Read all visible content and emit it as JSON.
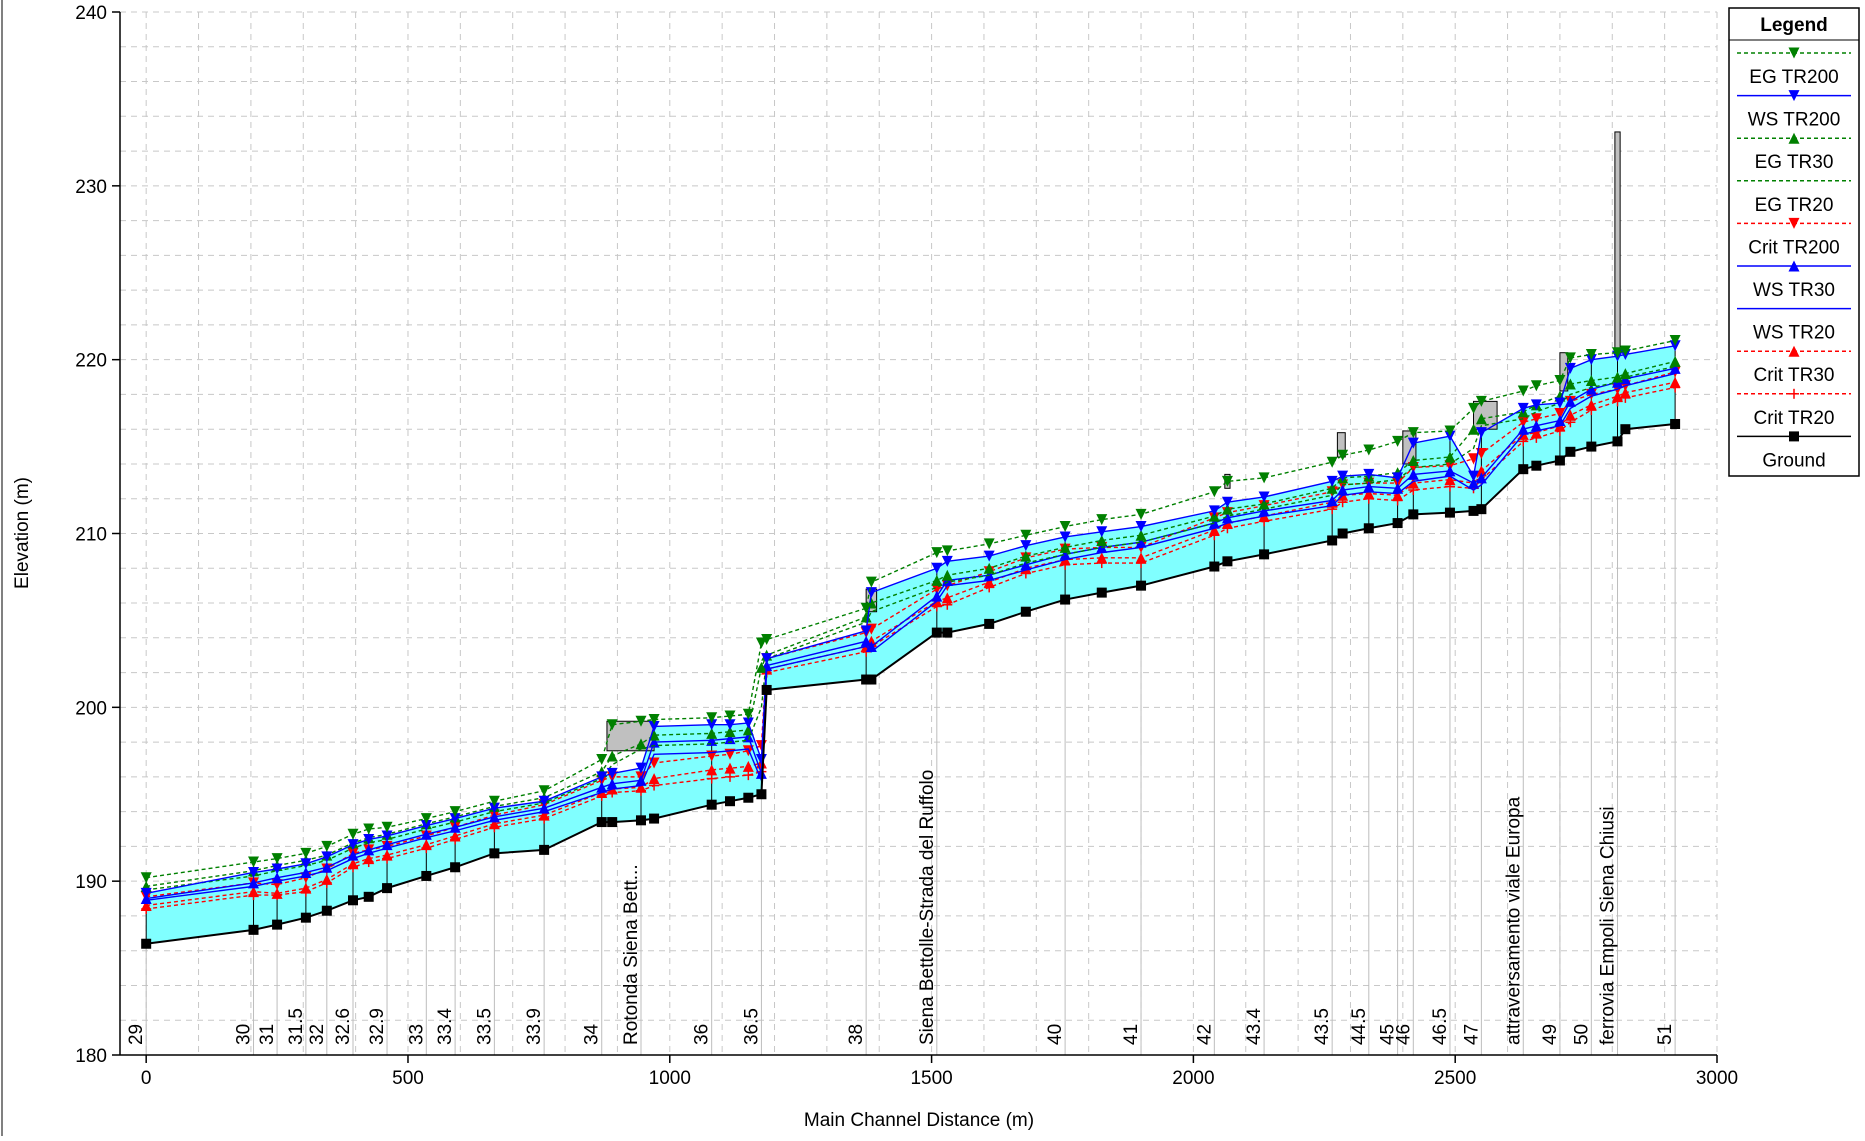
{
  "chart_data": {
    "type": "line",
    "xlabel": "Main Channel Distance (m)",
    "ylabel": "Elevation (m)",
    "xlim": [
      -50,
      3000
    ],
    "ylim": [
      180,
      240
    ],
    "xticks": [
      0,
      500,
      1000,
      1500,
      2000,
      2500,
      3000
    ],
    "yticks": [
      180,
      190,
      200,
      210,
      220,
      230,
      240
    ],
    "grid": true,
    "legend": {
      "title": "Legend",
      "placement": "right",
      "entries": [
        {
          "label": "EG  TR200",
          "color": "#008000",
          "dash": true,
          "marker": "tri-down"
        },
        {
          "label": "WS  TR200",
          "color": "#0000ff",
          "dash": false,
          "marker": "tri-down"
        },
        {
          "label": "EG  TR30",
          "color": "#008000",
          "dash": true,
          "marker": "tri-up"
        },
        {
          "label": "EG  TR20",
          "color": "#008000",
          "dash": true,
          "marker": "none"
        },
        {
          "label": "Crit  TR200",
          "color": "#ff0000",
          "dash": true,
          "marker": "tri-down"
        },
        {
          "label": "WS  TR30",
          "color": "#0000ff",
          "dash": false,
          "marker": "tri-up"
        },
        {
          "label": "WS  TR20",
          "color": "#0000ff",
          "dash": false,
          "marker": "none"
        },
        {
          "label": "Crit  TR30",
          "color": "#ff0000",
          "dash": true,
          "marker": "tri-up"
        },
        {
          "label": "Crit  TR20",
          "color": "#ff0000",
          "dash": true,
          "marker": "plus"
        },
        {
          "label": "Ground",
          "color": "#000000",
          "dash": false,
          "marker": "square"
        }
      ]
    },
    "colors": {
      "water": "#80ffff",
      "ground": "#000000",
      "eg": "#008000",
      "ws": "#0000ff",
      "crit": "#ff0000",
      "structure": "#c0c0c0"
    },
    "x": [
      0,
      205,
      250,
      305,
      345,
      395,
      425,
      460,
      535,
      590,
      665,
      760,
      870,
      890,
      945,
      970,
      1080,
      1115,
      1150,
      1175,
      1185,
      1375,
      1385,
      1510,
      1530,
      1610,
      1680,
      1755,
      1825,
      1900,
      2040,
      2065,
      2135,
      2265,
      2285,
      2335,
      2390,
      2420,
      2490,
      2535,
      2550,
      2630,
      2655,
      2700,
      2720,
      2760,
      2810,
      2825,
      2920
    ],
    "series": [
      {
        "name": "Ground",
        "values": [
          186.4,
          187.2,
          187.5,
          187.9,
          188.3,
          188.9,
          189.1,
          189.6,
          190.3,
          190.8,
          191.6,
          191.8,
          193.4,
          193.4,
          193.5,
          193.6,
          194.4,
          194.6,
          194.8,
          195.0,
          201.0,
          201.6,
          201.6,
          204.3,
          204.3,
          204.8,
          205.5,
          206.2,
          206.6,
          207.0,
          208.1,
          208.4,
          208.8,
          209.6,
          210.0,
          210.3,
          210.6,
          211.1,
          211.2,
          211.3,
          211.4,
          213.7,
          213.9,
          214.2,
          214.7,
          215.0,
          215.3,
          216.0,
          216.3
        ]
      },
      {
        "name": "WS  TR20",
        "values": [
          188.9,
          189.7,
          190.0,
          190.3,
          190.6,
          191.3,
          191.6,
          191.9,
          192.5,
          192.9,
          193.5,
          194.0,
          195.1,
          195.3,
          195.5,
          197.3,
          197.4,
          197.5,
          197.6,
          195.8,
          202.2,
          203.5,
          203.2,
          206.1,
          207.0,
          207.3,
          207.9,
          208.5,
          208.9,
          209.2,
          210.3,
          210.6,
          211.0,
          211.6,
          212.2,
          212.4,
          212.3,
          213.0,
          213.3,
          212.5,
          212.8,
          215.7,
          215.9,
          216.2,
          217.2,
          217.9,
          218.3,
          218.5,
          219.2
        ]
      },
      {
        "name": "WS  TR30",
        "values": [
          189.0,
          189.9,
          190.2,
          190.5,
          190.8,
          191.5,
          191.8,
          192.1,
          192.7,
          193.1,
          193.7,
          194.2,
          195.4,
          195.6,
          195.8,
          198.0,
          198.1,
          198.2,
          198.3,
          196.2,
          202.4,
          203.8,
          203.5,
          206.4,
          207.3,
          207.6,
          208.2,
          208.8,
          209.2,
          209.5,
          210.6,
          210.9,
          211.3,
          211.9,
          212.5,
          212.7,
          212.6,
          213.4,
          213.6,
          212.9,
          213.2,
          216.0,
          216.2,
          216.5,
          217.6,
          218.3,
          218.7,
          218.9,
          219.5
        ]
      },
      {
        "name": "WS  TR200",
        "values": [
          189.3,
          190.5,
          190.7,
          191.0,
          191.4,
          192.1,
          192.4,
          192.6,
          193.2,
          193.6,
          194.2,
          194.6,
          196.0,
          196.2,
          196.5,
          198.9,
          199.0,
          199.0,
          199.1,
          197.0,
          202.8,
          204.4,
          206.6,
          208.0,
          208.4,
          208.7,
          209.3,
          209.8,
          210.1,
          210.4,
          211.3,
          211.8,
          212.1,
          213.0,
          213.3,
          213.4,
          213.2,
          215.2,
          215.6,
          213.3,
          215.8,
          217.2,
          217.4,
          217.5,
          219.5,
          220.0,
          220.2,
          220.3,
          220.8
        ]
      },
      {
        "name": "EG  TR20",
        "values": [
          189.5,
          190.3,
          190.6,
          190.9,
          191.2,
          191.9,
          192.2,
          192.4,
          193.0,
          193.4,
          194.0,
          194.5,
          195.9,
          196.7,
          197.6,
          197.8,
          197.9,
          198.0,
          198.1,
          200.0,
          202.8,
          204.9,
          205.5,
          206.9,
          207.2,
          207.6,
          208.3,
          208.8,
          209.2,
          209.5,
          210.6,
          211.0,
          211.4,
          212.2,
          212.8,
          212.9,
          213.1,
          213.8,
          214.0,
          214.9,
          216.2,
          216.6,
          217.0,
          217.5,
          218.0,
          218.4,
          218.7,
          219.0,
          219.6
        ]
      },
      {
        "name": "EG  TR30",
        "values": [
          189.7,
          190.6,
          190.9,
          191.2,
          191.5,
          192.2,
          192.5,
          192.7,
          193.3,
          193.7,
          194.3,
          194.8,
          196.3,
          197.2,
          197.9,
          198.4,
          198.5,
          198.6,
          198.7,
          202.3,
          203.0,
          205.2,
          206.0,
          207.3,
          207.6,
          208.0,
          208.7,
          209.2,
          209.6,
          209.9,
          211.0,
          211.4,
          211.7,
          212.6,
          213.2,
          213.3,
          213.5,
          214.2,
          214.4,
          216.0,
          216.6,
          217.0,
          217.4,
          217.9,
          218.6,
          218.8,
          219.0,
          219.2,
          219.9
        ]
      },
      {
        "name": "EG  TR200",
        "values": [
          190.2,
          191.1,
          191.3,
          191.6,
          192.0,
          192.7,
          193.0,
          193.1,
          193.6,
          194.0,
          194.6,
          195.2,
          197.0,
          199.0,
          199.2,
          199.3,
          199.4,
          199.5,
          199.6,
          203.7,
          203.9,
          205.7,
          207.2,
          208.9,
          209.0,
          209.4,
          209.9,
          210.4,
          210.8,
          211.1,
          212.4,
          213.0,
          213.2,
          214.1,
          214.5,
          214.8,
          215.3,
          215.8,
          215.9,
          217.2,
          217.6,
          218.2,
          218.5,
          218.8,
          220.1,
          220.3,
          220.4,
          220.5,
          221.1
        ]
      },
      {
        "name": "Crit  TR20",
        "values": [
          188.4,
          189.2,
          189.2,
          189.4,
          189.9,
          190.8,
          191.1,
          191.3,
          191.9,
          192.4,
          193.1,
          193.6,
          194.9,
          195.1,
          195.2,
          195.5,
          195.9,
          196.0,
          196.1,
          196.3,
          202.0,
          203.2,
          203.5,
          205.8,
          205.9,
          206.9,
          207.7,
          208.2,
          208.3,
          208.3,
          209.9,
          210.3,
          210.7,
          211.4,
          211.8,
          212.0,
          211.9,
          212.5,
          212.7,
          212.6,
          213.1,
          215.3,
          215.5,
          215.9,
          216.4,
          217.1,
          217.6,
          217.8,
          218.4
        ]
      },
      {
        "name": "Crit  TR30",
        "values": [
          188.6,
          189.4,
          189.3,
          189.6,
          190.1,
          191.0,
          191.3,
          191.5,
          192.1,
          192.6,
          193.3,
          193.8,
          195.1,
          195.3,
          195.4,
          195.9,
          196.4,
          196.5,
          196.6,
          196.8,
          202.2,
          203.5,
          203.8,
          206.1,
          206.3,
          207.2,
          208.0,
          208.5,
          208.6,
          208.6,
          210.2,
          210.6,
          211.0,
          211.8,
          212.2,
          212.3,
          212.2,
          212.9,
          213.1,
          212.9,
          213.6,
          215.7,
          215.8,
          216.2,
          216.8,
          217.4,
          217.9,
          218.1,
          218.7
        ]
      },
      {
        "name": "Crit  TR200",
        "values": [
          189.1,
          189.9,
          189.8,
          190.2,
          190.7,
          191.6,
          191.8,
          192.0,
          192.6,
          193.1,
          193.8,
          194.4,
          195.8,
          196.0,
          196.0,
          196.8,
          197.2,
          197.3,
          197.5,
          197.8,
          202.8,
          204.3,
          204.5,
          206.8,
          207.0,
          207.8,
          208.6,
          209.1,
          209.2,
          209.2,
          210.9,
          211.2,
          211.6,
          212.4,
          212.8,
          212.9,
          212.9,
          213.8,
          213.9,
          214.3,
          214.6,
          216.4,
          216.6,
          216.9,
          217.6,
          218.0,
          218.3,
          218.5,
          219.3
        ]
      }
    ],
    "station_labels": [
      {
        "x": 0,
        "label": "29"
      },
      {
        "x": 205,
        "label": "30"
      },
      {
        "x": 250,
        "label": "31"
      },
      {
        "x": 305,
        "label": "31.5"
      },
      {
        "x": 345,
        "label": "32"
      },
      {
        "x": 395,
        "label": "32.6"
      },
      {
        "x": 460,
        "label": "32.9"
      },
      {
        "x": 535,
        "label": "33"
      },
      {
        "x": 590,
        "label": "33.4"
      },
      {
        "x": 665,
        "label": "33.5"
      },
      {
        "x": 760,
        "label": "33.9"
      },
      {
        "x": 870,
        "label": "34"
      },
      {
        "x": 945,
        "label": "Rotonda Siena Bett..."
      },
      {
        "x": 1080,
        "label": "36"
      },
      {
        "x": 1175,
        "label": "36.5"
      },
      {
        "x": 1375,
        "label": "38"
      },
      {
        "x": 1510,
        "label": "Siena Bettolle-Strada del Ruffolo"
      },
      {
        "x": 1755,
        "label": "40"
      },
      {
        "x": 1900,
        "label": "41"
      },
      {
        "x": 2040,
        "label": "42"
      },
      {
        "x": 2135,
        "label": "43.4"
      },
      {
        "x": 2265,
        "label": "43.5"
      },
      {
        "x": 2335,
        "label": "44.5"
      },
      {
        "x": 2390,
        "label": "45"
      },
      {
        "x": 2420,
        "label": "46"
      },
      {
        "x": 2490,
        "label": "46.5"
      },
      {
        "x": 2550,
        "label": "47"
      },
      {
        "x": 2630,
        "label": "attraversamento viale Europa"
      },
      {
        "x": 2700,
        "label": "49"
      },
      {
        "x": 2760,
        "label": "50"
      },
      {
        "x": 2810,
        "label": "ferrovia Empoli Siena Chiusi"
      },
      {
        "x": 2920,
        "label": "51"
      }
    ],
    "structures": [
      {
        "x1": 880,
        "x2": 970,
        "bottom": 197.5,
        "top": 199.2
      },
      {
        "x1": 1375,
        "x2": 1395,
        "bottom": 205.5,
        "top": 206.8
      },
      {
        "x1": 2060,
        "x2": 2070,
        "bottom": 212.6,
        "top": 213.4
      },
      {
        "x1": 2275,
        "x2": 2290,
        "bottom": 214.4,
        "top": 215.8
      },
      {
        "x1": 2400,
        "x2": 2425,
        "bottom": 214.0,
        "top": 215.9
      },
      {
        "x1": 2535,
        "x2": 2580,
        "bottom": 216.0,
        "top": 217.6
      },
      {
        "x1": 2700,
        "x2": 2715,
        "bottom": 218.2,
        "top": 220.4
      },
      {
        "x1": 2805,
        "x2": 2815,
        "bottom": 220.4,
        "top": 233.1
      }
    ]
  }
}
